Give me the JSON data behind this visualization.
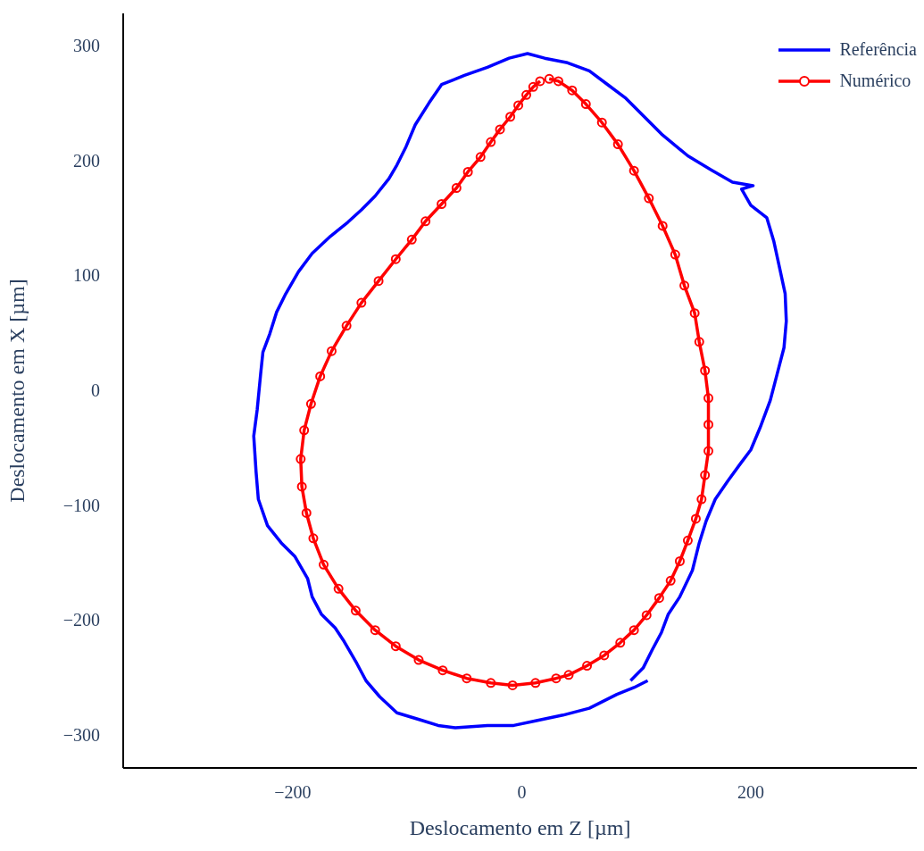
{
  "chart_data": {
    "type": "line",
    "xlabel": "Deslocamento em Z [µm]",
    "ylabel": "Deslocamento em X [µm]",
    "xlim": [
      -348,
      345
    ],
    "ylim": [
      -329,
      328
    ],
    "xticks": [
      {
        "value": -200,
        "label": "−200"
      },
      0,
      200
    ],
    "yticks": [
      {
        "value": -300,
        "label": "−300"
      },
      {
        "value": -200,
        "label": "−200"
      },
      {
        "value": -100,
        "label": "−100"
      },
      0,
      100,
      200,
      300
    ],
    "legend": "top right",
    "line_style": "solid",
    "series": [
      {
        "name": "Referência",
        "color": "#0000ff",
        "marker": "none",
        "x": [
          110,
          98,
          83,
          59,
          36,
          12,
          -7,
          -30,
          -58,
          -73,
          -89,
          -109,
          -124,
          -136,
          -144,
          -155,
          -163,
          -175,
          -183,
          -187,
          -198,
          -210,
          -222,
          -230,
          -232,
          -234,
          -231,
          -228,
          -226,
          -220,
          -214,
          -206,
          -195,
          -183,
          -167,
          -152,
          -140,
          -128,
          -116,
          -109,
          -101,
          -93,
          -81,
          -70,
          -50,
          -30,
          -11,
          5,
          20,
          40,
          59,
          75,
          91,
          106,
          122,
          145,
          165,
          184,
          202,
          192,
          200,
          214,
          220,
          225,
          230,
          231,
          229,
          223,
          217,
          208,
          200,
          191,
          180,
          169,
          161,
          155,
          149,
          138,
          128,
          122,
          114,
          106,
          95
        ],
        "values": [
          -253,
          -259,
          -265,
          -277,
          -283,
          -288,
          -292,
          -292,
          -294,
          -292,
          -287,
          -281,
          -267,
          -253,
          -238,
          -219,
          -207,
          -195,
          -180,
          -164,
          -145,
          -133,
          -118,
          -95,
          -71,
          -40,
          -17,
          14,
          33,
          49,
          68,
          84,
          103,
          119,
          134,
          146,
          157,
          169,
          184,
          196,
          212,
          231,
          250,
          266,
          274,
          281,
          289,
          293,
          289,
          285,
          278,
          266,
          254,
          239,
          223,
          204,
          192,
          181,
          178,
          175,
          161,
          150,
          130,
          107,
          84,
          60,
          37,
          14,
          -9,
          -33,
          -52,
          -64,
          -79,
          -95,
          -114,
          -133,
          -157,
          -180,
          -195,
          -211,
          -226,
          -242,
          -253
        ]
      },
      {
        "name": "Numérico",
        "color": "#ff0000",
        "marker": "circle",
        "x": [
          24,
          32,
          44,
          56,
          70,
          84,
          98,
          111,
          123,
          134,
          142,
          151,
          155,
          160,
          163,
          163,
          163,
          160,
          157,
          152,
          145,
          138,
          130,
          120,
          109,
          98,
          86,
          72,
          57,
          41,
          30,
          12,
          -8,
          -27,
          -48,
          -69,
          -90,
          -110,
          -128,
          -145,
          -160,
          -173,
          -182,
          -188,
          -192,
          -193,
          -190,
          -184,
          -176,
          -166,
          -153,
          -140,
          -125,
          -110,
          -96,
          -84,
          -70,
          -57,
          -47,
          -36,
          -27,
          -19,
          -10,
          -3,
          4,
          10,
          16
        ],
        "values": [
          271,
          269,
          261,
          249,
          233,
          214,
          191,
          167,
          143,
          118,
          91,
          67,
          42,
          17,
          -7,
          -30,
          -53,
          -74,
          -95,
          -112,
          -131,
          -149,
          -166,
          -181,
          -196,
          -209,
          -220,
          -231,
          -240,
          -248,
          -251,
          -255,
          -257,
          -255,
          -251,
          -244,
          -235,
          -223,
          -209,
          -192,
          -173,
          -152,
          -129,
          -107,
          -84,
          -60,
          -35,
          -12,
          12,
          34,
          56,
          76,
          95,
          114,
          131,
          147,
          162,
          176,
          190,
          203,
          216,
          227,
          238,
          248,
          257,
          264,
          269
        ]
      }
    ]
  }
}
